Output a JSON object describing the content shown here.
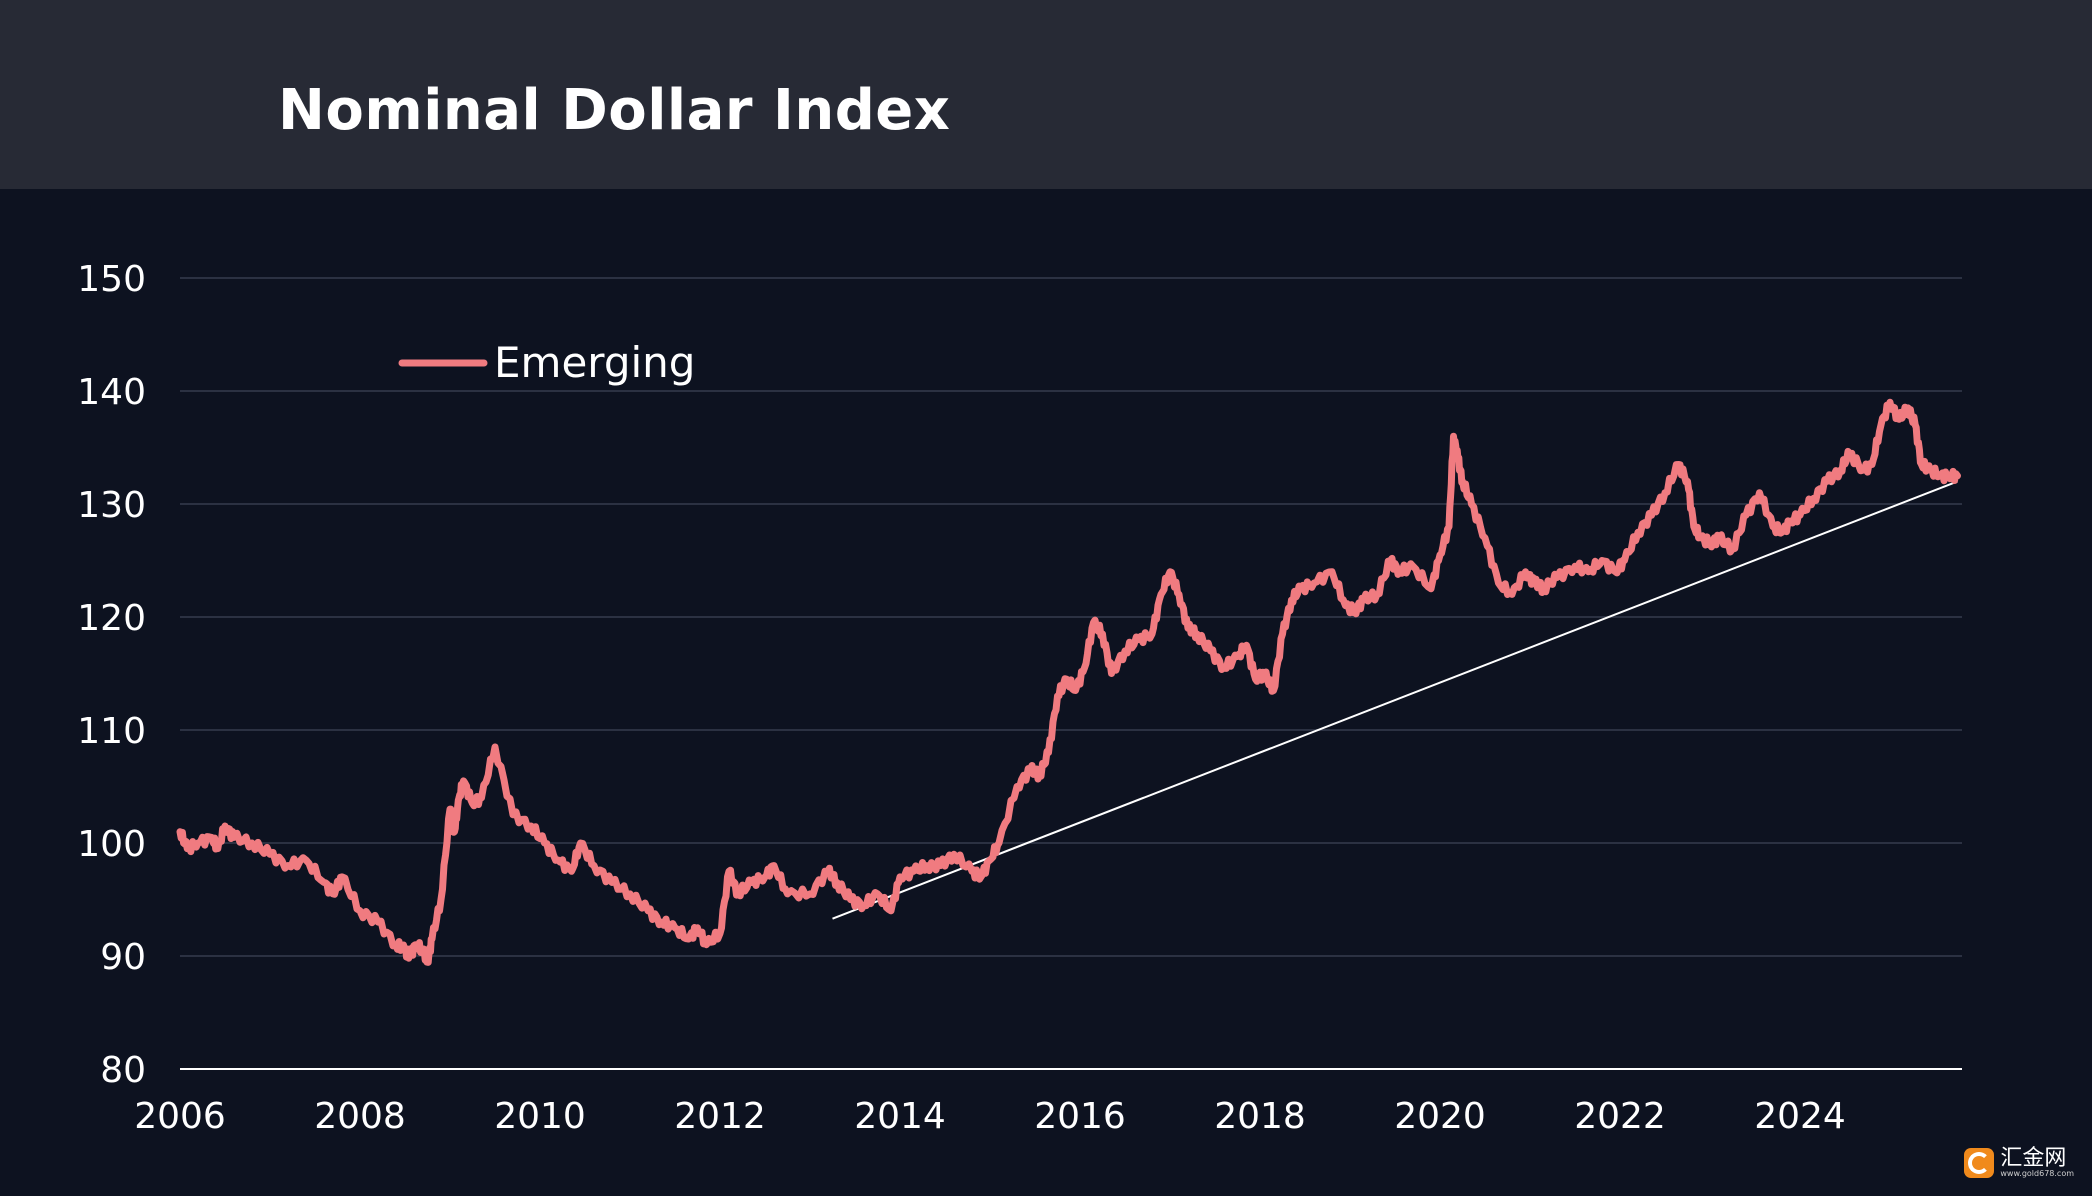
{
  "title": "Nominal Dollar Index",
  "watermark": {
    "name": "汇金网",
    "url": "www.gold678.com"
  },
  "colors": {
    "series": "#f07b80",
    "trendline": "#ffffff",
    "grid": "#2b3142",
    "background": "#0d1220",
    "header": "#272a35"
  },
  "chart_data": {
    "type": "line",
    "title": "Nominal Dollar Index",
    "xlabel": "",
    "ylabel": "",
    "xlim": [
      2006,
      2025.8
    ],
    "ylim": [
      80,
      150
    ],
    "xticks": [
      "2006",
      "2008",
      "2010",
      "2012",
      "2014",
      "2016",
      "2018",
      "2020",
      "2022",
      "2024"
    ],
    "yticks": [
      "80",
      "90",
      "100",
      "110",
      "120",
      "130",
      "140",
      "150"
    ],
    "grid": true,
    "legend": "top-left",
    "series": [
      {
        "name": "Emerging",
        "x": [
          2006.0,
          2006.08,
          2006.2,
          2006.35,
          2006.42,
          2006.5,
          2006.6,
          2006.8,
          2007.0,
          2007.2,
          2007.4,
          2007.6,
          2007.7,
          2007.8,
          2008.0,
          2008.2,
          2008.4,
          2008.5,
          2008.55,
          2008.62,
          2008.7,
          2008.75,
          2008.8,
          2008.9,
          2009.0,
          2009.05,
          2009.1,
          2009.15,
          2009.25,
          2009.35,
          2009.5,
          2009.7,
          2009.9,
          2010.05,
          2010.2,
          2010.35,
          2010.45,
          2010.6,
          2010.8,
          2011.0,
          2011.2,
          2011.35,
          2011.5,
          2011.65,
          2011.75,
          2011.85,
          2012.0,
          2012.1,
          2012.2,
          2012.35,
          2012.5,
          2012.6,
          2012.75,
          2013.0,
          2013.2,
          2013.3,
          2013.45,
          2013.6,
          2013.75,
          2013.9,
          2014.0,
          2014.15,
          2014.3,
          2014.45,
          2014.6,
          2014.8,
          2014.9,
          2015.0,
          2015.1,
          2015.3,
          2015.45,
          2015.55,
          2015.65,
          2015.75,
          2015.85,
          2015.95,
          2016.05,
          2016.15,
          2016.25,
          2016.35,
          2016.5,
          2016.65,
          2016.8,
          2016.9,
          2017.0,
          2017.1,
          2017.2,
          2017.3,
          2017.45,
          2017.6,
          2017.75,
          2017.85,
          2017.95,
          2018.05,
          2018.15,
          2018.25,
          2018.35,
          2018.45,
          2018.6,
          2018.8,
          2018.95,
          2019.05,
          2019.15,
          2019.3,
          2019.45,
          2019.55,
          2019.7,
          2019.9,
          2020.0,
          2020.1,
          2020.15,
          2020.2,
          2020.25,
          2020.35,
          2020.5,
          2020.65,
          2020.8,
          2020.95,
          2021.05,
          2021.15,
          2021.3,
          2021.5,
          2021.65,
          2021.8,
          2021.95,
          2022.05,
          2022.2,
          2022.35,
          2022.5,
          2022.65,
          2022.75,
          2022.82,
          2022.9,
          2023.0,
          2023.1,
          2023.25,
          2023.4,
          2023.55,
          2023.7,
          2023.8,
          2023.9,
          2024.0,
          2024.15,
          2024.3,
          2024.45,
          2024.55,
          2024.7,
          2024.8,
          2024.9,
          2025.0,
          2025.1,
          2025.2,
          2025.28,
          2025.35,
          2025.45,
          2025.55,
          2025.65,
          2025.75
        ],
        "y": [
          101.0,
          99.5,
          100.0,
          100.5,
          99.5,
          101.5,
          100.5,
          100.0,
          99.0,
          98.0,
          98.5,
          96.5,
          95.5,
          97.0,
          94.0,
          93.0,
          91.0,
          90.5,
          90.0,
          91.0,
          90.5,
          89.5,
          91.5,
          95.0,
          103.0,
          101.0,
          104.0,
          105.5,
          103.5,
          104.0,
          108.5,
          102.5,
          101.5,
          100.0,
          98.5,
          97.5,
          100.0,
          98.0,
          96.5,
          95.5,
          94.0,
          93.0,
          92.5,
          91.5,
          92.5,
          91.0,
          92.0,
          97.5,
          95.5,
          96.5,
          97.0,
          98.0,
          95.5,
          95.5,
          97.5,
          96.5,
          95.0,
          94.5,
          95.5,
          94.0,
          97.0,
          97.5,
          98.0,
          98.0,
          99.0,
          97.5,
          97.0,
          98.5,
          100.0,
          105.0,
          106.5,
          106.0,
          108.0,
          113.0,
          114.5,
          113.5,
          115.5,
          119.5,
          118.5,
          115.0,
          117.0,
          118.0,
          118.5,
          122.0,
          124.0,
          122.0,
          119.0,
          118.5,
          117.0,
          115.5,
          116.5,
          117.5,
          114.5,
          115.0,
          113.5,
          118.5,
          121.5,
          122.5,
          123.0,
          124.0,
          121.0,
          120.5,
          121.5,
          122.0,
          125.0,
          124.0,
          124.5,
          122.5,
          125.5,
          128.0,
          136.0,
          134.0,
          132.0,
          130.0,
          127.0,
          123.0,
          122.0,
          124.0,
          123.0,
          122.5,
          123.5,
          124.5,
          124.0,
          125.0,
          124.0,
          125.0,
          127.5,
          129.0,
          131.0,
          133.5,
          132.0,
          128.0,
          127.0,
          126.5,
          127.0,
          126.0,
          129.0,
          131.0,
          128.0,
          127.5,
          128.5,
          129.0,
          130.5,
          132.0,
          133.0,
          134.5,
          133.0,
          133.5,
          137.0,
          139.0,
          137.5,
          138.5,
          137.0,
          133.5,
          133.0,
          132.5,
          132.5,
          132.5
        ],
        "color": "#f07b80"
      }
    ],
    "trendline": {
      "x": [
        2013.25,
        2025.75
      ],
      "y": [
        93.3,
        132.0
      ]
    }
  }
}
